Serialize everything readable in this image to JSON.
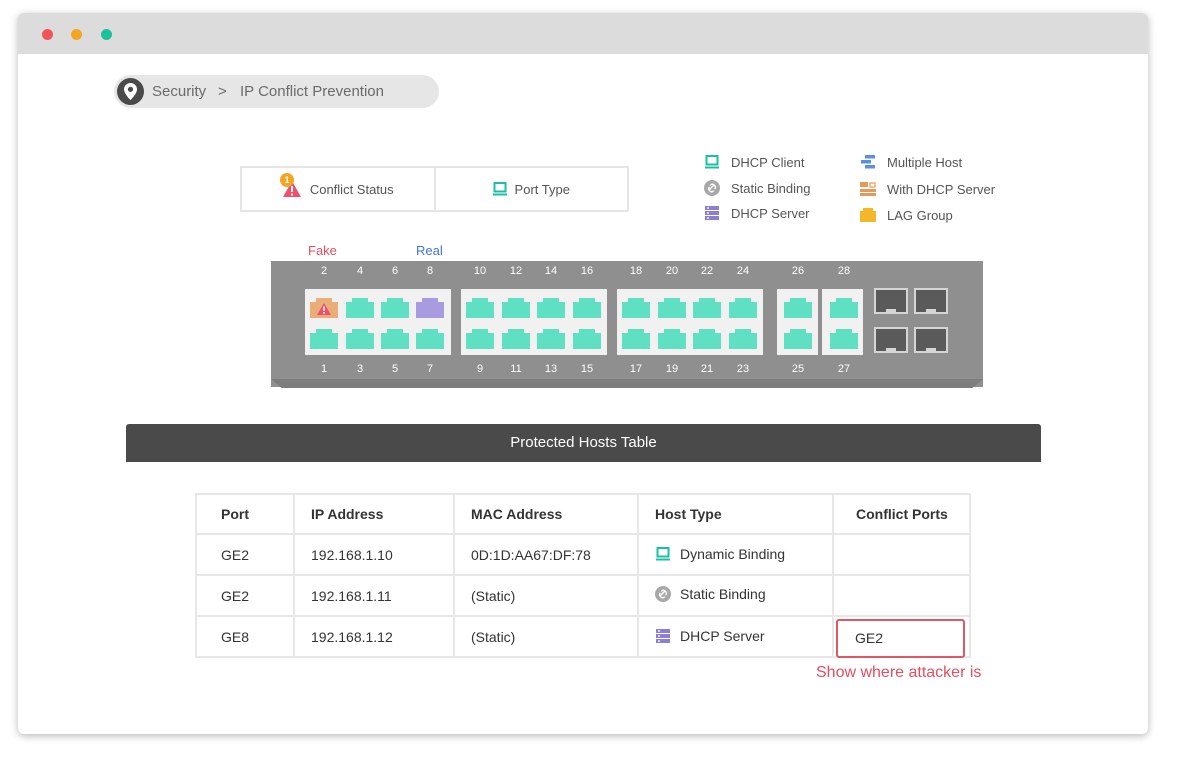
{
  "window": {
    "controls": [
      "close",
      "minimize",
      "maximize"
    ]
  },
  "breadcrumb": {
    "section": "Security",
    "separator": ">",
    "page": "IP Conflict Prevention",
    "icon": "location-pin-icon"
  },
  "tabs": [
    {
      "label": "Conflict Status",
      "icon": "warning-icon",
      "badge": "1"
    },
    {
      "label": "Port Type",
      "icon": "monitor-icon"
    }
  ],
  "legend": [
    {
      "label": "DHCP Client",
      "icon": "monitor-icon",
      "color": "#1bbfa4"
    },
    {
      "label": "Static Binding",
      "icon": "link-icon",
      "color": "#a8a8a8"
    },
    {
      "label": "DHCP Server",
      "icon": "server-icon",
      "color": "#8b7fd4"
    },
    {
      "label": "Multiple Host",
      "icon": "multi-host-icon",
      "color": "#5c8fe0"
    },
    {
      "label": "With DHCP Server",
      "icon": "dhcp-server-host-icon",
      "color": "#e6995a"
    },
    {
      "label": "LAG Group",
      "icon": "lag-group-icon",
      "color": "#f4b72a"
    }
  ],
  "switch": {
    "fake_label": "Fake",
    "real_label": "Real",
    "top_ports": [
      "2",
      "4",
      "6",
      "8",
      "10",
      "12",
      "14",
      "16",
      "18",
      "20",
      "22",
      "24",
      "26",
      "28"
    ],
    "bottom_ports": [
      "1",
      "3",
      "5",
      "7",
      "9",
      "11",
      "13",
      "15",
      "17",
      "19",
      "21",
      "23",
      "25",
      "27"
    ],
    "colors": {
      "port": "#5fe0c2",
      "fake": "#e9ad78",
      "real": "#a89be0",
      "fake_border": "#e25766",
      "real_border": "#3f78d4"
    }
  },
  "table": {
    "title": "Protected Hosts Table",
    "columns": [
      "Port",
      "IP Address",
      "MAC Address",
      "Host Type",
      "Conflict Ports"
    ],
    "rows": [
      {
        "port": "GE2",
        "ip": "192.168.1.10",
        "mac": "0D:1D:AA67:DF:78",
        "host_type": "Dynamic Binding",
        "icon": "monitor-icon",
        "conflict": ""
      },
      {
        "port": "GE2",
        "ip": "192.168.1.11",
        "mac": "(Static)",
        "host_type": "Static Binding",
        "icon": "link-icon",
        "conflict": ""
      },
      {
        "port": "GE8",
        "ip": "192.168.1.12",
        "mac": "(Static)",
        "host_type": "DHCP Server",
        "icon": "server-icon",
        "conflict": "GE2"
      }
    ]
  },
  "annotation": "Show where attacker is"
}
